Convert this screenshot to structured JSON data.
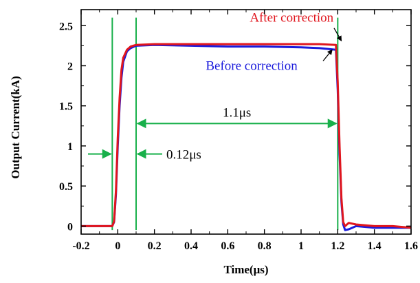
{
  "chart_data": {
    "type": "line",
    "title": "",
    "xlabel": "Time(μs)",
    "ylabel": "Output Current(kA)",
    "xlim": [
      -0.2,
      1.6
    ],
    "ylim": [
      -0.1,
      2.7
    ],
    "x_ticks": [
      -0.2,
      0,
      0.2,
      0.4,
      0.6,
      0.8,
      1,
      1.2,
      1.4,
      1.6
    ],
    "x_tick_labels": [
      "-0.2",
      "0",
      "0.2",
      "0.4",
      "0.6",
      "0.8",
      "1",
      "1.2",
      "1.4",
      "1.6"
    ],
    "y_ticks": [
      0,
      0.5,
      1,
      1.5,
      2,
      2.5
    ],
    "y_tick_labels": [
      "0",
      "0.5",
      "1",
      "1.5",
      "2",
      "2.5"
    ],
    "grid": false,
    "series": [
      {
        "name": "Before correction",
        "color": "#1a1adc",
        "x": [
          -0.2,
          -0.03,
          -0.02,
          -0.01,
          0.0,
          0.01,
          0.02,
          0.03,
          0.05,
          0.07,
          0.1,
          0.2,
          0.4,
          0.6,
          0.8,
          1.0,
          1.1,
          1.19,
          1.2,
          1.21,
          1.22,
          1.23,
          1.24,
          1.26,
          1.3,
          1.4,
          1.5,
          1.6
        ],
        "y": [
          0.0,
          0.0,
          0.05,
          0.4,
          1.0,
          1.5,
          1.85,
          2.05,
          2.18,
          2.22,
          2.25,
          2.26,
          2.25,
          2.24,
          2.24,
          2.23,
          2.22,
          2.2,
          1.7,
          0.9,
          0.3,
          0.02,
          -0.05,
          -0.04,
          0.0,
          -0.02,
          -0.02,
          -0.02
        ]
      },
      {
        "name": "After correction",
        "color": "#e0161e",
        "x": [
          -0.2,
          -0.03,
          -0.02,
          -0.01,
          0.0,
          0.01,
          0.02,
          0.03,
          0.05,
          0.07,
          0.1,
          0.2,
          0.4,
          0.6,
          0.8,
          1.0,
          1.1,
          1.19,
          1.2,
          1.21,
          1.22,
          1.23,
          1.24,
          1.26,
          1.3,
          1.4,
          1.5,
          1.6
        ],
        "y": [
          0.0,
          0.0,
          0.06,
          0.45,
          1.1,
          1.6,
          1.95,
          2.1,
          2.2,
          2.24,
          2.26,
          2.27,
          2.27,
          2.27,
          2.27,
          2.27,
          2.27,
          2.26,
          1.8,
          1.0,
          0.35,
          0.05,
          0.0,
          0.04,
          0.02,
          0.0,
          0.0,
          -0.02
        ]
      }
    ],
    "vertical_lines": [
      -0.03,
      0.1,
      1.2
    ],
    "guide_color": "#18b04a",
    "annotations": {
      "after_label": "After correction",
      "before_label": "Before correction",
      "span_label": "1.1μs",
      "rise_label": "0.12μs",
      "span": {
        "x1": 0.1,
        "x2": 1.2,
        "y": 1.28
      },
      "rise": {
        "x1": -0.03,
        "x2": 0.1,
        "y": 0.9,
        "left_start": -0.2
      }
    }
  }
}
